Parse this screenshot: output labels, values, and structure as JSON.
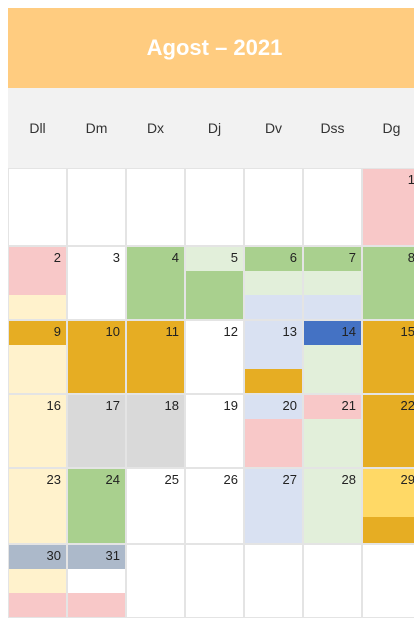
{
  "header": {
    "title": "Agost – 2021",
    "color": "#ffcc80"
  },
  "weekdays": [
    "Dll",
    "Dm",
    "Dx",
    "Dj",
    "Dv",
    "Dss",
    "Dg"
  ],
  "weeks": [
    [
      {
        "day": null,
        "fills": [
          "#ffffff",
          "#ffffff",
          "#ffffff"
        ]
      },
      {
        "day": null,
        "fills": [
          "#ffffff",
          "#ffffff",
          "#ffffff"
        ]
      },
      {
        "day": null,
        "fills": [
          "#ffffff",
          "#ffffff",
          "#ffffff"
        ]
      },
      {
        "day": null,
        "fills": [
          "#ffffff",
          "#ffffff",
          "#ffffff"
        ]
      },
      {
        "day": null,
        "fills": [
          "#ffffff",
          "#ffffff",
          "#ffffff"
        ]
      },
      {
        "day": null,
        "fills": [
          "#ffffff",
          "#ffffff",
          "#ffffff"
        ]
      },
      {
        "day": 1,
        "fills": [
          "#f8c8c8",
          "#f8c8c8",
          "#f8c8c8"
        ]
      }
    ],
    [
      {
        "day": 2,
        "fills": [
          "#f8c8c8",
          "#f8c8c8",
          "#fff2cc"
        ]
      },
      {
        "day": 3,
        "fills": [
          "#ffffff",
          "#ffffff",
          "#ffffff"
        ]
      },
      {
        "day": 4,
        "fills": [
          "#a9d08e",
          "#a9d08e",
          "#a9d08e"
        ]
      },
      {
        "day": 5,
        "fills": [
          "#e2efda",
          "#a9d08e",
          "#a9d08e"
        ]
      },
      {
        "day": 6,
        "fills": [
          "#a9d08e",
          "#e2efda",
          "#d9e1f2"
        ]
      },
      {
        "day": 7,
        "fills": [
          "#a9d08e",
          "#e2efda",
          "#d9e1f2"
        ]
      },
      {
        "day": 8,
        "fills": [
          "#a9d08e",
          "#a9d08e",
          "#a9d08e"
        ]
      }
    ],
    [
      {
        "day": 9,
        "fills": [
          "#e6ad23",
          "#fff2cc",
          "#fff2cc"
        ]
      },
      {
        "day": 10,
        "fills": [
          "#e6ad23",
          "#e6ad23",
          "#e6ad23"
        ]
      },
      {
        "day": 11,
        "fills": [
          "#e6ad23",
          "#e6ad23",
          "#e6ad23"
        ]
      },
      {
        "day": 12,
        "fills": [
          "#ffffff",
          "#ffffff",
          "#ffffff"
        ]
      },
      {
        "day": 13,
        "fills": [
          "#d9e1f2",
          "#d9e1f2",
          "#e6ad23"
        ]
      },
      {
        "day": 14,
        "fills": [
          "#4472c4",
          "#e2efda",
          "#e2efda"
        ]
      },
      {
        "day": 15,
        "fills": [
          "#e6ad23",
          "#e6ad23",
          "#e6ad23"
        ]
      }
    ],
    [
      {
        "day": 16,
        "fills": [
          "#fff2cc",
          "#fff2cc",
          "#fff2cc"
        ]
      },
      {
        "day": 17,
        "fills": [
          "#d9d9d9",
          "#d9d9d9",
          "#d9d9d9"
        ]
      },
      {
        "day": 18,
        "fills": [
          "#d9d9d9",
          "#d9d9d9",
          "#d9d9d9"
        ]
      },
      {
        "day": 19,
        "fills": [
          "#ffffff",
          "#ffffff",
          "#ffffff"
        ]
      },
      {
        "day": 20,
        "fills": [
          "#d9e1f2",
          "#f8c8c8",
          "#f8c8c8"
        ]
      },
      {
        "day": 21,
        "fills": [
          "#f8c8c8",
          "#e2efda",
          "#e2efda"
        ]
      },
      {
        "day": 22,
        "fills": [
          "#e6ad23",
          "#e6ad23",
          "#e6ad23"
        ]
      }
    ],
    [
      {
        "day": 23,
        "fills": [
          "#fff2cc",
          "#fff2cc",
          "#fff2cc"
        ]
      },
      {
        "day": 24,
        "fills": [
          "#a9d08e",
          "#a9d08e",
          "#a9d08e"
        ]
      },
      {
        "day": 25,
        "fills": [
          "#ffffff",
          "#ffffff",
          "#ffffff"
        ]
      },
      {
        "day": 26,
        "fills": [
          "#ffffff",
          "#ffffff",
          "#ffffff"
        ]
      },
      {
        "day": 27,
        "fills": [
          "#d9e1f2",
          "#d9e1f2",
          "#d9e1f2"
        ]
      },
      {
        "day": 28,
        "fills": [
          "#e2efda",
          "#e2efda",
          "#e2efda"
        ]
      },
      {
        "day": 29,
        "fills": [
          "#ffd966",
          "#ffd966",
          "#e6ad23"
        ]
      }
    ],
    [
      {
        "day": 30,
        "fills": [
          "#acb9ca",
          "#fff2cc",
          "#f8c8c8"
        ]
      },
      {
        "day": 31,
        "fills": [
          "#acb9ca",
          "#ffffff",
          "#f8c8c8"
        ]
      },
      {
        "day": null,
        "fills": [
          "#ffffff",
          "#ffffff",
          "#ffffff"
        ]
      },
      {
        "day": null,
        "fills": [
          "#ffffff",
          "#ffffff",
          "#ffffff"
        ]
      },
      {
        "day": null,
        "fills": [
          "#ffffff",
          "#ffffff",
          "#ffffff"
        ]
      },
      {
        "day": null,
        "fills": [
          "#ffffff",
          "#ffffff",
          "#ffffff"
        ]
      },
      {
        "day": null,
        "fills": [
          "#ffffff",
          "#ffffff",
          "#ffffff"
        ]
      }
    ]
  ]
}
